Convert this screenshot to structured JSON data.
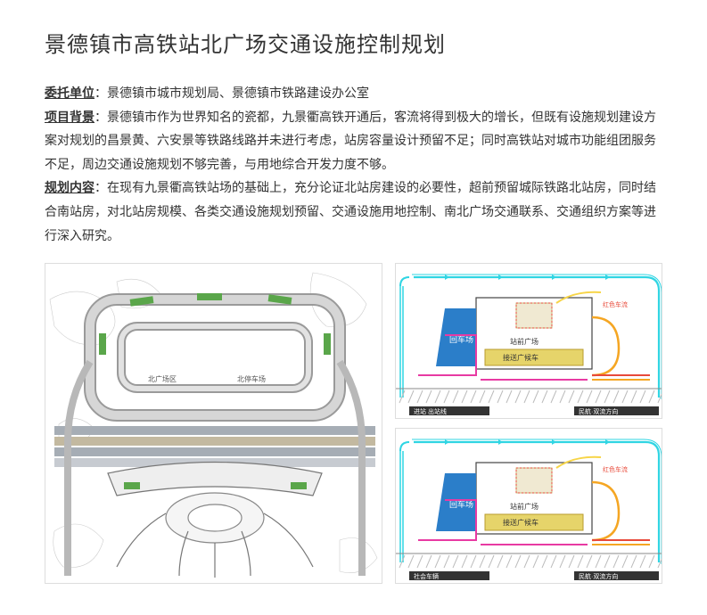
{
  "title": "景德镇市高铁站北广场交通设施控制规划",
  "sections": {
    "client": {
      "label": "委托单位",
      "text": "：景德镇市城市规划局、景德镇市铁路建设办公室"
    },
    "background": {
      "label": "项目背景",
      "text": "：景德镇市作为世界知名的瓷都，九景衢高铁开通后，客流将得到极大的增长，但既有设施规划建设方案对规划的昌景黄、六安景等铁路线路并未进行考虑，站房容量设计预留不足；同时高铁站对城市功能组团服务不足，周边交通设施规划不够完善，与用地综合开发力度不够。"
    },
    "content": {
      "label": "规划内容",
      "text": "：在现有九景衢高铁站场的基础上，充分论证北站房建设的必要性，超前预留城际铁路北站房，同时结合南站房，对北站房规模、各类交通设施规划预留、交通设施用地控制、南北广场交通联系、交通组织方案等进行深入研究。"
    }
  },
  "figures": {
    "masterplan": {
      "type": "siteplan",
      "background_color": "#ffffff",
      "contour_color": "#cccccc",
      "road_color": "#b0b0b0",
      "road_outline": "#888888",
      "green_block_color": "#5aa64a",
      "huang_color": "#9c8a6a",
      "runway_colors": [
        "#9ca1a7",
        "#b7bbc0"
      ],
      "terminal_outline": "#666666",
      "label_text_color": "#444444",
      "labels": {
        "north_field": "北广场区",
        "park": "北停车场"
      }
    },
    "traffic_a": {
      "type": "traffic-diagram",
      "background_color": "#ffffff",
      "border_color": "#444444",
      "road_colors": {
        "cyan": "#2fd5e3",
        "magenta": "#e83aa3",
        "orange": "#f5a623",
        "yellow": "#f7d548",
        "red": "#e84a3a"
      },
      "block_colors": {
        "parking": "#2b7ec9",
        "plaza": "#ffffff",
        "rail": "#bcbcbc",
        "drop": "#e6d46a"
      },
      "labels": {
        "parking": "回车场",
        "station": "站前广场",
        "drop": "接送广候车",
        "legend_r": "民航·双流方向",
        "legend_l": "进站 出站线"
      }
    },
    "traffic_b": {
      "type": "traffic-diagram",
      "background_color": "#ffffff",
      "border_color": "#444444",
      "road_colors": {
        "cyan": "#2fd5e3",
        "magenta": "#e83aa3",
        "orange": "#f5a623",
        "yellow": "#f7d548",
        "red": "#e84a3a"
      },
      "block_colors": {
        "parking": "#2b7ec9",
        "plaza": "#ffffff",
        "rail": "#bcbcbc",
        "drop": "#e6d46a"
      },
      "labels": {
        "parking": "回车场",
        "station": "站前广场",
        "drop": "接送广候车",
        "legend_r": "民航·双流方向",
        "legend_l": "社会车辆"
      }
    }
  }
}
